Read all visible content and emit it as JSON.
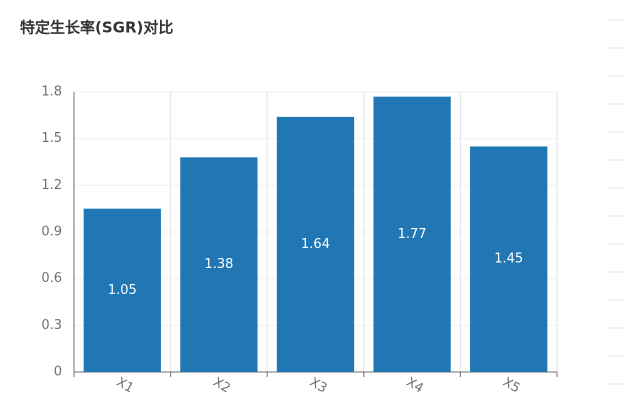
{
  "chart_data": {
    "type": "bar",
    "title": "特定生长率(SGR)对比",
    "categories": [
      "X1",
      "X2",
      "X3",
      "X4",
      "X5"
    ],
    "values": [
      1.05,
      1.38,
      1.64,
      1.77,
      1.45
    ],
    "color": "#2077b4",
    "ylim": [
      0,
      1.8
    ],
    "yticks": [
      0,
      0.3,
      0.6,
      0.9,
      1.2,
      1.5,
      1.8
    ],
    "grid": true
  }
}
